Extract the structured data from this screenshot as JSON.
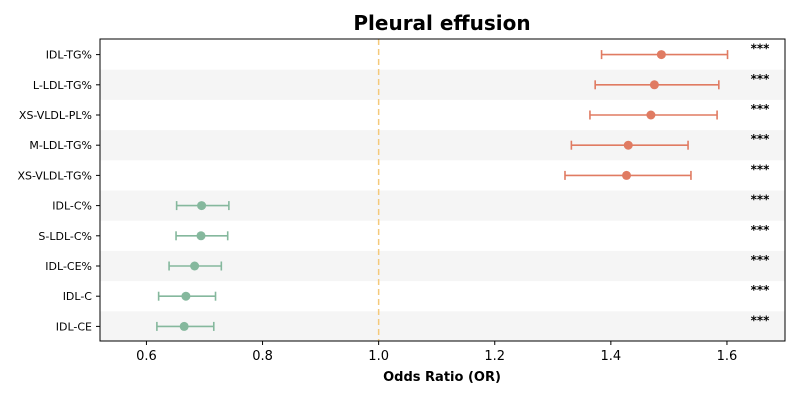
{
  "chart_data": {
    "type": "forest",
    "title": "Pleural effusion",
    "xlabel": "Odds Ratio (OR)",
    "xlim": [
      0.52,
      1.7
    ],
    "xticks": [
      "0.6",
      "0.8",
      "1.0",
      "1.2",
      "1.4",
      "1.6"
    ],
    "reference_line": 1.0,
    "grid": false,
    "colors": {
      "risk": "#e07b62",
      "protective": "#85b89d",
      "reference": "#f5c97a",
      "band": "#f5f5f5"
    },
    "rows": [
      {
        "label": "IDL-TG%",
        "or": 1.487,
        "lower": 1.384,
        "upper": 1.601,
        "sig": "***",
        "group": "risk"
      },
      {
        "label": "L-LDL-TG%",
        "or": 1.475,
        "lower": 1.373,
        "upper": 1.586,
        "sig": "***",
        "group": "risk"
      },
      {
        "label": "XS-VLDL-PL%",
        "or": 1.469,
        "lower": 1.364,
        "upper": 1.583,
        "sig": "***",
        "group": "risk"
      },
      {
        "label": "M-LDL-TG%",
        "or": 1.43,
        "lower": 1.332,
        "upper": 1.533,
        "sig": "***",
        "group": "risk"
      },
      {
        "label": "XS-VLDL-TG%",
        "or": 1.427,
        "lower": 1.321,
        "upper": 1.538,
        "sig": "***",
        "group": "risk"
      },
      {
        "label": "IDL-C%",
        "or": 0.695,
        "lower": 0.652,
        "upper": 0.742,
        "sig": "***",
        "group": "protective"
      },
      {
        "label": "S-LDL-C%",
        "or": 0.694,
        "lower": 0.651,
        "upper": 0.74,
        "sig": "***",
        "group": "protective"
      },
      {
        "label": "IDL-CE%",
        "or": 0.683,
        "lower": 0.639,
        "upper": 0.729,
        "sig": "***",
        "group": "protective"
      },
      {
        "label": "IDL-C",
        "or": 0.668,
        "lower": 0.621,
        "upper": 0.719,
        "sig": "***",
        "group": "protective"
      },
      {
        "label": "IDL-CE",
        "or": 0.665,
        "lower": 0.618,
        "upper": 0.716,
        "sig": "***",
        "group": "protective"
      }
    ]
  }
}
